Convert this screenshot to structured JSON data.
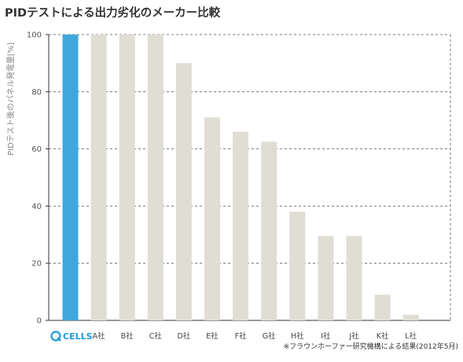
{
  "title": "PIDテストによる出力劣化のメーカー比較",
  "ylabel": "PIDテスト後のパネル発電量[%]",
  "footnote": "※フラウンホーファー研究機構による結果(2012年5月)",
  "logo": {
    "text": "CELLS",
    "letter": "Q"
  },
  "colors": {
    "highlight": "#3fa7dc",
    "bar": "#e0ddd4",
    "grid": "#555555",
    "axis": "#333333"
  },
  "chart_data": {
    "type": "bar",
    "title": "PIDテストによる出力劣化のメーカー比較",
    "xlabel": "",
    "ylabel": "PIDテスト後のパネル発電量[%]",
    "ylim": [
      0,
      100
    ],
    "yticks": [
      0,
      20,
      40,
      60,
      80,
      100
    ],
    "grid": true,
    "categories": [
      "Q CELLS",
      "A社",
      "B社",
      "C社",
      "D社",
      "E社",
      "F社",
      "G社",
      "H社",
      "I社",
      "J社",
      "K社",
      "L社"
    ],
    "values": [
      100,
      100,
      100,
      100,
      90,
      71,
      66,
      62.5,
      38,
      29.5,
      29.5,
      9,
      2
    ],
    "highlight_index": 0
  }
}
